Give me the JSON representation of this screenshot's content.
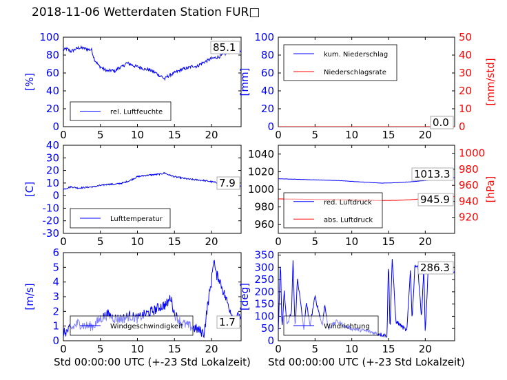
{
  "title": "2018-11-06 Wetterdaten Station FUR□",
  "chart_data": [
    {
      "id": "humidity",
      "type": "line",
      "xlim": [
        0,
        24
      ],
      "xticks": [
        0,
        5,
        10,
        15,
        20
      ],
      "ylim": [
        0,
        100
      ],
      "yticks": [
        0,
        20,
        40,
        60,
        80,
        100
      ],
      "ylabel": "[%]",
      "ylabel_color": "#0000ff",
      "last_value_label": "85.1",
      "legend": [
        {
          "name": "rel. Luftfeuchte",
          "color": "#0000ff"
        }
      ],
      "series": [
        {
          "name": "rel. Luftfeuchte",
          "color": "#0000ff",
          "noise": 1.8,
          "x": [
            0,
            0.5,
            1,
            1.5,
            2,
            2.5,
            3,
            3.5,
            3.8,
            4.2,
            4.8,
            5.5,
            6,
            6.5,
            7,
            7.5,
            8,
            8.5,
            9,
            9.5,
            10,
            10.5,
            11,
            11.5,
            12,
            12.5,
            13,
            13.3,
            13.7,
            14,
            14.5,
            15,
            15.5,
            16,
            16.5,
            17,
            17.5,
            18,
            18.5,
            19,
            19.5,
            20,
            20.5,
            21,
            21.5,
            22,
            22.5,
            23,
            23.5,
            24
          ],
          "y": [
            86,
            87,
            84,
            86,
            88,
            88,
            87,
            86,
            86,
            75,
            68,
            64,
            62,
            63,
            62,
            66,
            67,
            71,
            70,
            68,
            67,
            66,
            64,
            64,
            62,
            60,
            57,
            56,
            53,
            56,
            58,
            60,
            62,
            64,
            65,
            66,
            68,
            67,
            70,
            72,
            74,
            76,
            77,
            78,
            80,
            82,
            84,
            85,
            85.5,
            85.1
          ]
        }
      ]
    },
    {
      "id": "precipitation",
      "type": "line",
      "xlim": [
        0,
        24
      ],
      "xticks": [
        0,
        5,
        10,
        15,
        20
      ],
      "ylim": [
        0,
        100
      ],
      "yticks": [
        0,
        20,
        40,
        60,
        80,
        100
      ],
      "ylabel": "[mm]",
      "ylabel_color": "#0000ff",
      "y2lim": [
        0,
        50
      ],
      "y2ticks": [
        0,
        10,
        20,
        30,
        40,
        50
      ],
      "y2label": "[mm/std]",
      "y2label_color": "#ff0000",
      "last_value_label": "0.0",
      "last_value_label2": "0.0",
      "legend": [
        {
          "name": "kum. Niederschlag",
          "color": "#0000ff"
        },
        {
          "name": "Niederschlagsrate",
          "color": "#ff0000"
        }
      ],
      "series": [
        {
          "name": "kum. Niederschlag",
          "color": "#0000ff",
          "axis": "left",
          "noise": 0,
          "x": [
            0,
            24
          ],
          "y": [
            0,
            0
          ]
        },
        {
          "name": "Niederschlagsrate",
          "color": "#ff0000",
          "axis": "right",
          "noise": 0,
          "x": [
            0,
            24
          ],
          "y": [
            0,
            0
          ]
        }
      ]
    },
    {
      "id": "temperature",
      "type": "line",
      "xlim": [
        0,
        24
      ],
      "xticks": [
        0,
        5,
        10,
        15,
        20
      ],
      "ylim": [
        -30,
        40
      ],
      "yticks": [
        -30,
        -20,
        -10,
        0,
        10,
        20,
        30,
        40
      ],
      "ylabel": "[C]",
      "ylabel_color": "#0000ff",
      "last_value_label": "7.9",
      "legend": [
        {
          "name": "Lufttemperatur",
          "color": "#0000ff"
        }
      ],
      "series": [
        {
          "name": "Lufttemperatur",
          "color": "#0000ff",
          "noise": 0.6,
          "x": [
            0,
            1,
            2,
            3,
            4,
            5,
            6,
            7,
            8,
            9,
            10,
            11,
            12,
            13,
            13.7,
            14,
            15,
            16,
            17,
            18,
            19,
            20,
            21,
            22,
            23,
            24
          ],
          "y": [
            5,
            7,
            6,
            6.5,
            7,
            8,
            9,
            9,
            10,
            12,
            15,
            16,
            16.5,
            17,
            18,
            17,
            15,
            14,
            13,
            12.5,
            12,
            11,
            10,
            9,
            8.5,
            7.9
          ]
        }
      ]
    },
    {
      "id": "pressure",
      "type": "line",
      "xlim": [
        0,
        24
      ],
      "xticks": [
        0,
        5,
        10,
        15,
        20
      ],
      "ylim": [
        950,
        1050
      ],
      "yticks": [
        960,
        980,
        1000,
        1020,
        1040
      ],
      "ylabel": "",
      "y2lim": [
        900,
        1010
      ],
      "y2ticks": [
        920,
        940,
        960,
        980,
        1000
      ],
      "y2label": "[hPa]",
      "y2label_color": "#ff0000",
      "last_value_label": "1013.3",
      "last_value_label2": "945.9",
      "legend": [
        {
          "name": "red. Luftdruck",
          "color": "#0000ff"
        },
        {
          "name": "abs. Luftdruck",
          "color": "#ff0000"
        }
      ],
      "series": [
        {
          "name": "red. Luftdruck",
          "color": "#0000ff",
          "axis": "left",
          "noise": 0.15,
          "x": [
            0,
            4,
            8,
            12,
            14,
            16,
            18,
            20,
            22,
            24
          ],
          "y": [
            1012,
            1011,
            1010,
            1008,
            1007,
            1007.5,
            1008.5,
            1010,
            1012,
            1013.3
          ]
        },
        {
          "name": "abs. Luftdruck",
          "color": "#ff0000",
          "axis": "right",
          "noise": 0.1,
          "x": [
            0,
            4,
            8,
            12,
            14,
            16,
            18,
            20,
            22,
            24
          ],
          "y": [
            943,
            942.5,
            942,
            941.5,
            941,
            941.2,
            942,
            943.5,
            945,
            945.9
          ]
        }
      ]
    },
    {
      "id": "wind-speed",
      "type": "line",
      "xlim": [
        0,
        24
      ],
      "xticks": [
        0,
        5,
        10,
        15,
        20
      ],
      "ylim": [
        0,
        6
      ],
      "yticks": [
        0,
        1,
        2,
        3,
        4,
        5,
        6
      ],
      "ylabel": "[m/s]",
      "ylabel_color": "#0000ff",
      "xlabel": "Std 00:00:00 UTC (+-23 Std Lokalzeit)",
      "last_value_label": "1.7",
      "legend": [
        {
          "name": "Windgeschwindigkeit",
          "color": "#0000ff"
        }
      ],
      "series": [
        {
          "name": "Windgeschwindigkeit",
          "color": "#0000ff",
          "noise": 0.35,
          "x": [
            0,
            1,
            2,
            3,
            4,
            5,
            6,
            7,
            8,
            9,
            10,
            11,
            12,
            13,
            14,
            14.5,
            15,
            16,
            17,
            18,
            19,
            19.5,
            20,
            20.3,
            20.6,
            21,
            21.5,
            22,
            23,
            24
          ],
          "y": [
            0.5,
            0.8,
            1.2,
            1.0,
            1.0,
            1.5,
            1.8,
            1.5,
            1.5,
            1.7,
            1.5,
            1.8,
            2.0,
            2.3,
            2.5,
            3.0,
            1.8,
            1.2,
            1.0,
            0.8,
            0.5,
            2.5,
            4.0,
            5.7,
            4.5,
            4.3,
            3.5,
            2.8,
            1.5,
            1.7
          ]
        }
      ]
    },
    {
      "id": "wind-direction",
      "type": "line",
      "xlim": [
        0,
        24
      ],
      "xticks": [
        0,
        5,
        10,
        15,
        20
      ],
      "ylim": [
        0,
        360
      ],
      "yticks": [
        0,
        50,
        100,
        150,
        200,
        250,
        300,
        350
      ],
      "ylabel": "[deg]",
      "ylabel_color": "#0000ff",
      "xlabel": "Std 00:00:00 UTC (+-23 Std Lokalzeit)",
      "last_value_label": "286.3",
      "legend": [
        {
          "name": "Windrichtung",
          "color": "#0000ff"
        }
      ],
      "series": [
        {
          "name": "Windrichtung",
          "color": "#0000ff",
          "noise": 8,
          "x": [
            0,
            0.3,
            0.5,
            0.8,
            1.2,
            1.8,
            2.0,
            2.3,
            2.6,
            3.5,
            3.8,
            4.3,
            5.0,
            6.0,
            6.3,
            6.8,
            8.0,
            9.0,
            10.0,
            12.0,
            14.8,
            15.0,
            15.2,
            15.5,
            16.0,
            17.5,
            18.0,
            18.2,
            18.6,
            19.0,
            19.5,
            19.8,
            20.0,
            20.4,
            21.0,
            22.0,
            23.0,
            24.0
          ],
          "y": [
            30,
            330,
            40,
            200,
            60,
            120,
            330,
            40,
            260,
            40,
            160,
            60,
            180,
            60,
            150,
            50,
            80,
            60,
            50,
            40,
            20,
            340,
            30,
            340,
            80,
            40,
            300,
            80,
            310,
            300,
            90,
            310,
            20,
            300,
            290,
            295,
            288,
            286.3
          ]
        }
      ]
    }
  ]
}
